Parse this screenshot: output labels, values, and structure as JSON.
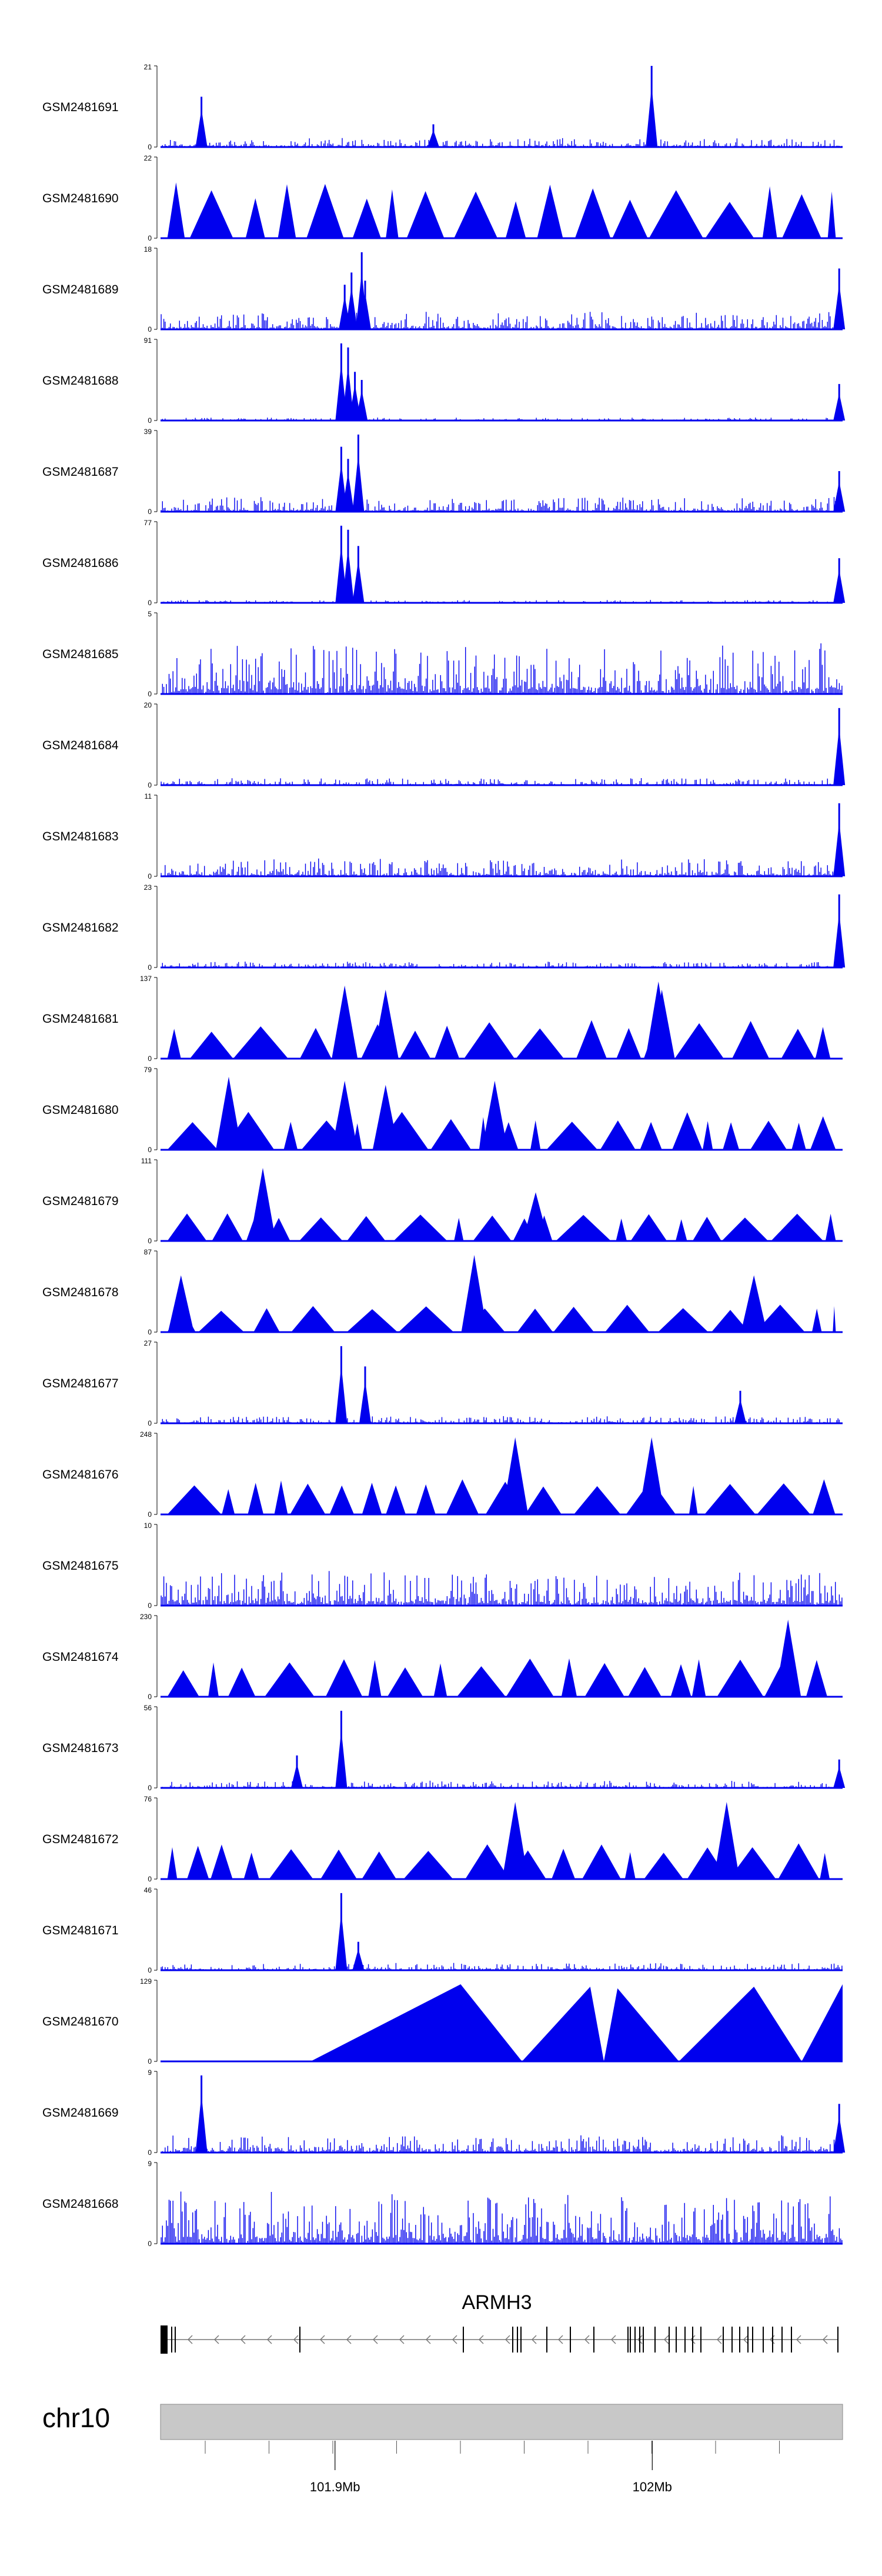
{
  "chart_data": {
    "type": "area",
    "title": "",
    "xlabel": "",
    "ylabel": "",
    "x_range_mb": [
      101.845,
      102.06
    ],
    "track_color": "#0000ee",
    "tracks": [
      {
        "name": "GSM2481691",
        "ymax": "21",
        "ymin": "0",
        "style": "noise",
        "base": 0.06,
        "seed": 1,
        "spikes": [
          [
            0.06,
            0.62
          ],
          [
            0.4,
            0.28
          ],
          [
            0.72,
            1.0
          ]
        ]
      },
      {
        "name": "GSM2481690",
        "ymax": "22",
        "ymin": "0",
        "style": "tri",
        "base": 0.85,
        "seed": 2,
        "spikes": []
      },
      {
        "name": "GSM2481689",
        "ymax": "18",
        "ymin": "0",
        "style": "noise",
        "base": 0.12,
        "seed": 3,
        "spikes": [
          [
            0.27,
            0.55
          ],
          [
            0.28,
            0.7
          ],
          [
            0.295,
            0.95
          ],
          [
            0.3,
            0.6
          ],
          [
            0.995,
            0.75
          ]
        ]
      },
      {
        "name": "GSM2481688",
        "ymax": "91",
        "ymin": "0",
        "style": "noise",
        "base": 0.02,
        "seed": 4,
        "spikes": [
          [
            0.265,
            0.95
          ],
          [
            0.275,
            0.9
          ],
          [
            0.285,
            0.6
          ],
          [
            0.295,
            0.5
          ],
          [
            0.995,
            0.45
          ]
        ]
      },
      {
        "name": "GSM2481687",
        "ymax": "39",
        "ymin": "0",
        "style": "noise",
        "base": 0.1,
        "seed": 5,
        "spikes": [
          [
            0.265,
            0.8
          ],
          [
            0.275,
            0.65
          ],
          [
            0.29,
            0.95
          ],
          [
            0.995,
            0.5
          ]
        ]
      },
      {
        "name": "GSM2481686",
        "ymax": "77",
        "ymin": "0",
        "style": "noise",
        "base": 0.02,
        "seed": 6,
        "spikes": [
          [
            0.265,
            0.95
          ],
          [
            0.275,
            0.9
          ],
          [
            0.29,
            0.7
          ],
          [
            0.995,
            0.55
          ]
        ]
      },
      {
        "name": "GSM2481685",
        "ymax": "5",
        "ymin": "0",
        "style": "noise",
        "base": 0.35,
        "seed": 7,
        "spikes": []
      },
      {
        "name": "GSM2481684",
        "ymax": "20",
        "ymin": "0",
        "style": "noise",
        "base": 0.05,
        "seed": 8,
        "spikes": [
          [
            0.995,
            0.95
          ]
        ]
      },
      {
        "name": "GSM2481683",
        "ymax": "11",
        "ymin": "0",
        "style": "noise",
        "base": 0.12,
        "seed": 9,
        "spikes": [
          [
            0.995,
            0.9
          ]
        ]
      },
      {
        "name": "GSM2481682",
        "ymax": "23",
        "ymin": "0",
        "style": "noise",
        "base": 0.04,
        "seed": 10,
        "spikes": [
          [
            0.995,
            0.9
          ]
        ]
      },
      {
        "name": "GSM2481681",
        "ymax": "137",
        "ymin": "0",
        "style": "tri",
        "base": 0.5,
        "seed": 11,
        "spikes": [
          [
            0.27,
            0.9
          ],
          [
            0.33,
            0.85
          ],
          [
            0.73,
            0.95
          ],
          [
            0.735,
            0.85
          ]
        ]
      },
      {
        "name": "GSM2481680",
        "ymax": "79",
        "ymin": "0",
        "style": "tri",
        "base": 0.5,
        "seed": 12,
        "spikes": [
          [
            0.1,
            0.9
          ],
          [
            0.27,
            0.85
          ],
          [
            0.33,
            0.8
          ],
          [
            0.49,
            0.85
          ]
        ]
      },
      {
        "name": "GSM2481679",
        "ymax": "111",
        "ymin": "0",
        "style": "tri",
        "base": 0.3,
        "seed": 13,
        "spikes": [
          [
            0.15,
            0.9
          ],
          [
            0.55,
            0.6
          ]
        ]
      },
      {
        "name": "GSM2481678",
        "ymax": "87",
        "ymin": "0",
        "style": "tri",
        "base": 0.3,
        "seed": 14,
        "spikes": [
          [
            0.03,
            0.7
          ],
          [
            0.46,
            0.95
          ],
          [
            0.87,
            0.7
          ]
        ]
      },
      {
        "name": "GSM2481677",
        "ymax": "27",
        "ymin": "0",
        "style": "noise",
        "base": 0.05,
        "seed": 15,
        "spikes": [
          [
            0.265,
            0.95
          ],
          [
            0.3,
            0.7
          ],
          [
            0.85,
            0.4
          ]
        ]
      },
      {
        "name": "GSM2481676",
        "ymax": "248",
        "ymin": "0",
        "style": "tri",
        "base": 0.45,
        "seed": 16,
        "spikes": [
          [
            0.52,
            0.95
          ],
          [
            0.72,
            0.95
          ]
        ]
      },
      {
        "name": "GSM2481675",
        "ymax": "10",
        "ymin": "0",
        "style": "noise",
        "base": 0.25,
        "seed": 17,
        "spikes": []
      },
      {
        "name": "GSM2481674",
        "ymax": "230",
        "ymin": "0",
        "style": "tri",
        "base": 0.5,
        "seed": 18,
        "spikes": [
          [
            0.92,
            0.95
          ]
        ]
      },
      {
        "name": "GSM2481673",
        "ymax": "56",
        "ymin": "0",
        "style": "noise",
        "base": 0.05,
        "seed": 19,
        "spikes": [
          [
            0.265,
            0.95
          ],
          [
            0.2,
            0.4
          ],
          [
            0.995,
            0.35
          ]
        ]
      },
      {
        "name": "GSM2481672",
        "ymax": "76",
        "ymin": "0",
        "style": "tri",
        "base": 0.45,
        "seed": 20,
        "spikes": [
          [
            0.52,
            0.95
          ],
          [
            0.83,
            0.95
          ]
        ]
      },
      {
        "name": "GSM2481671",
        "ymax": "46",
        "ymin": "0",
        "style": "noise",
        "base": 0.05,
        "seed": 21,
        "spikes": [
          [
            0.265,
            0.95
          ],
          [
            0.29,
            0.35
          ]
        ]
      },
      {
        "name": "GSM2481670",
        "ymax": "129",
        "ymin": "0",
        "style": "tri_big",
        "base": 0.8,
        "seed": 22,
        "spikes": []
      },
      {
        "name": "GSM2481669",
        "ymax": "9",
        "ymin": "0",
        "style": "noise",
        "base": 0.12,
        "seed": 23,
        "spikes": [
          [
            0.06,
            0.95
          ],
          [
            0.995,
            0.6
          ]
        ]
      },
      {
        "name": "GSM2481668",
        "ymax": "9",
        "ymin": "0",
        "style": "noise",
        "base": 0.35,
        "seed": 24,
        "spikes": []
      }
    ],
    "gene": {
      "name": "ARMH3",
      "strand": "-"
    },
    "chromosome": "chr10",
    "axis_ticks": [
      {
        "value": 101.9,
        "label": "101.9Mb"
      },
      {
        "value": 102.0,
        "label": "102Mb"
      }
    ]
  }
}
